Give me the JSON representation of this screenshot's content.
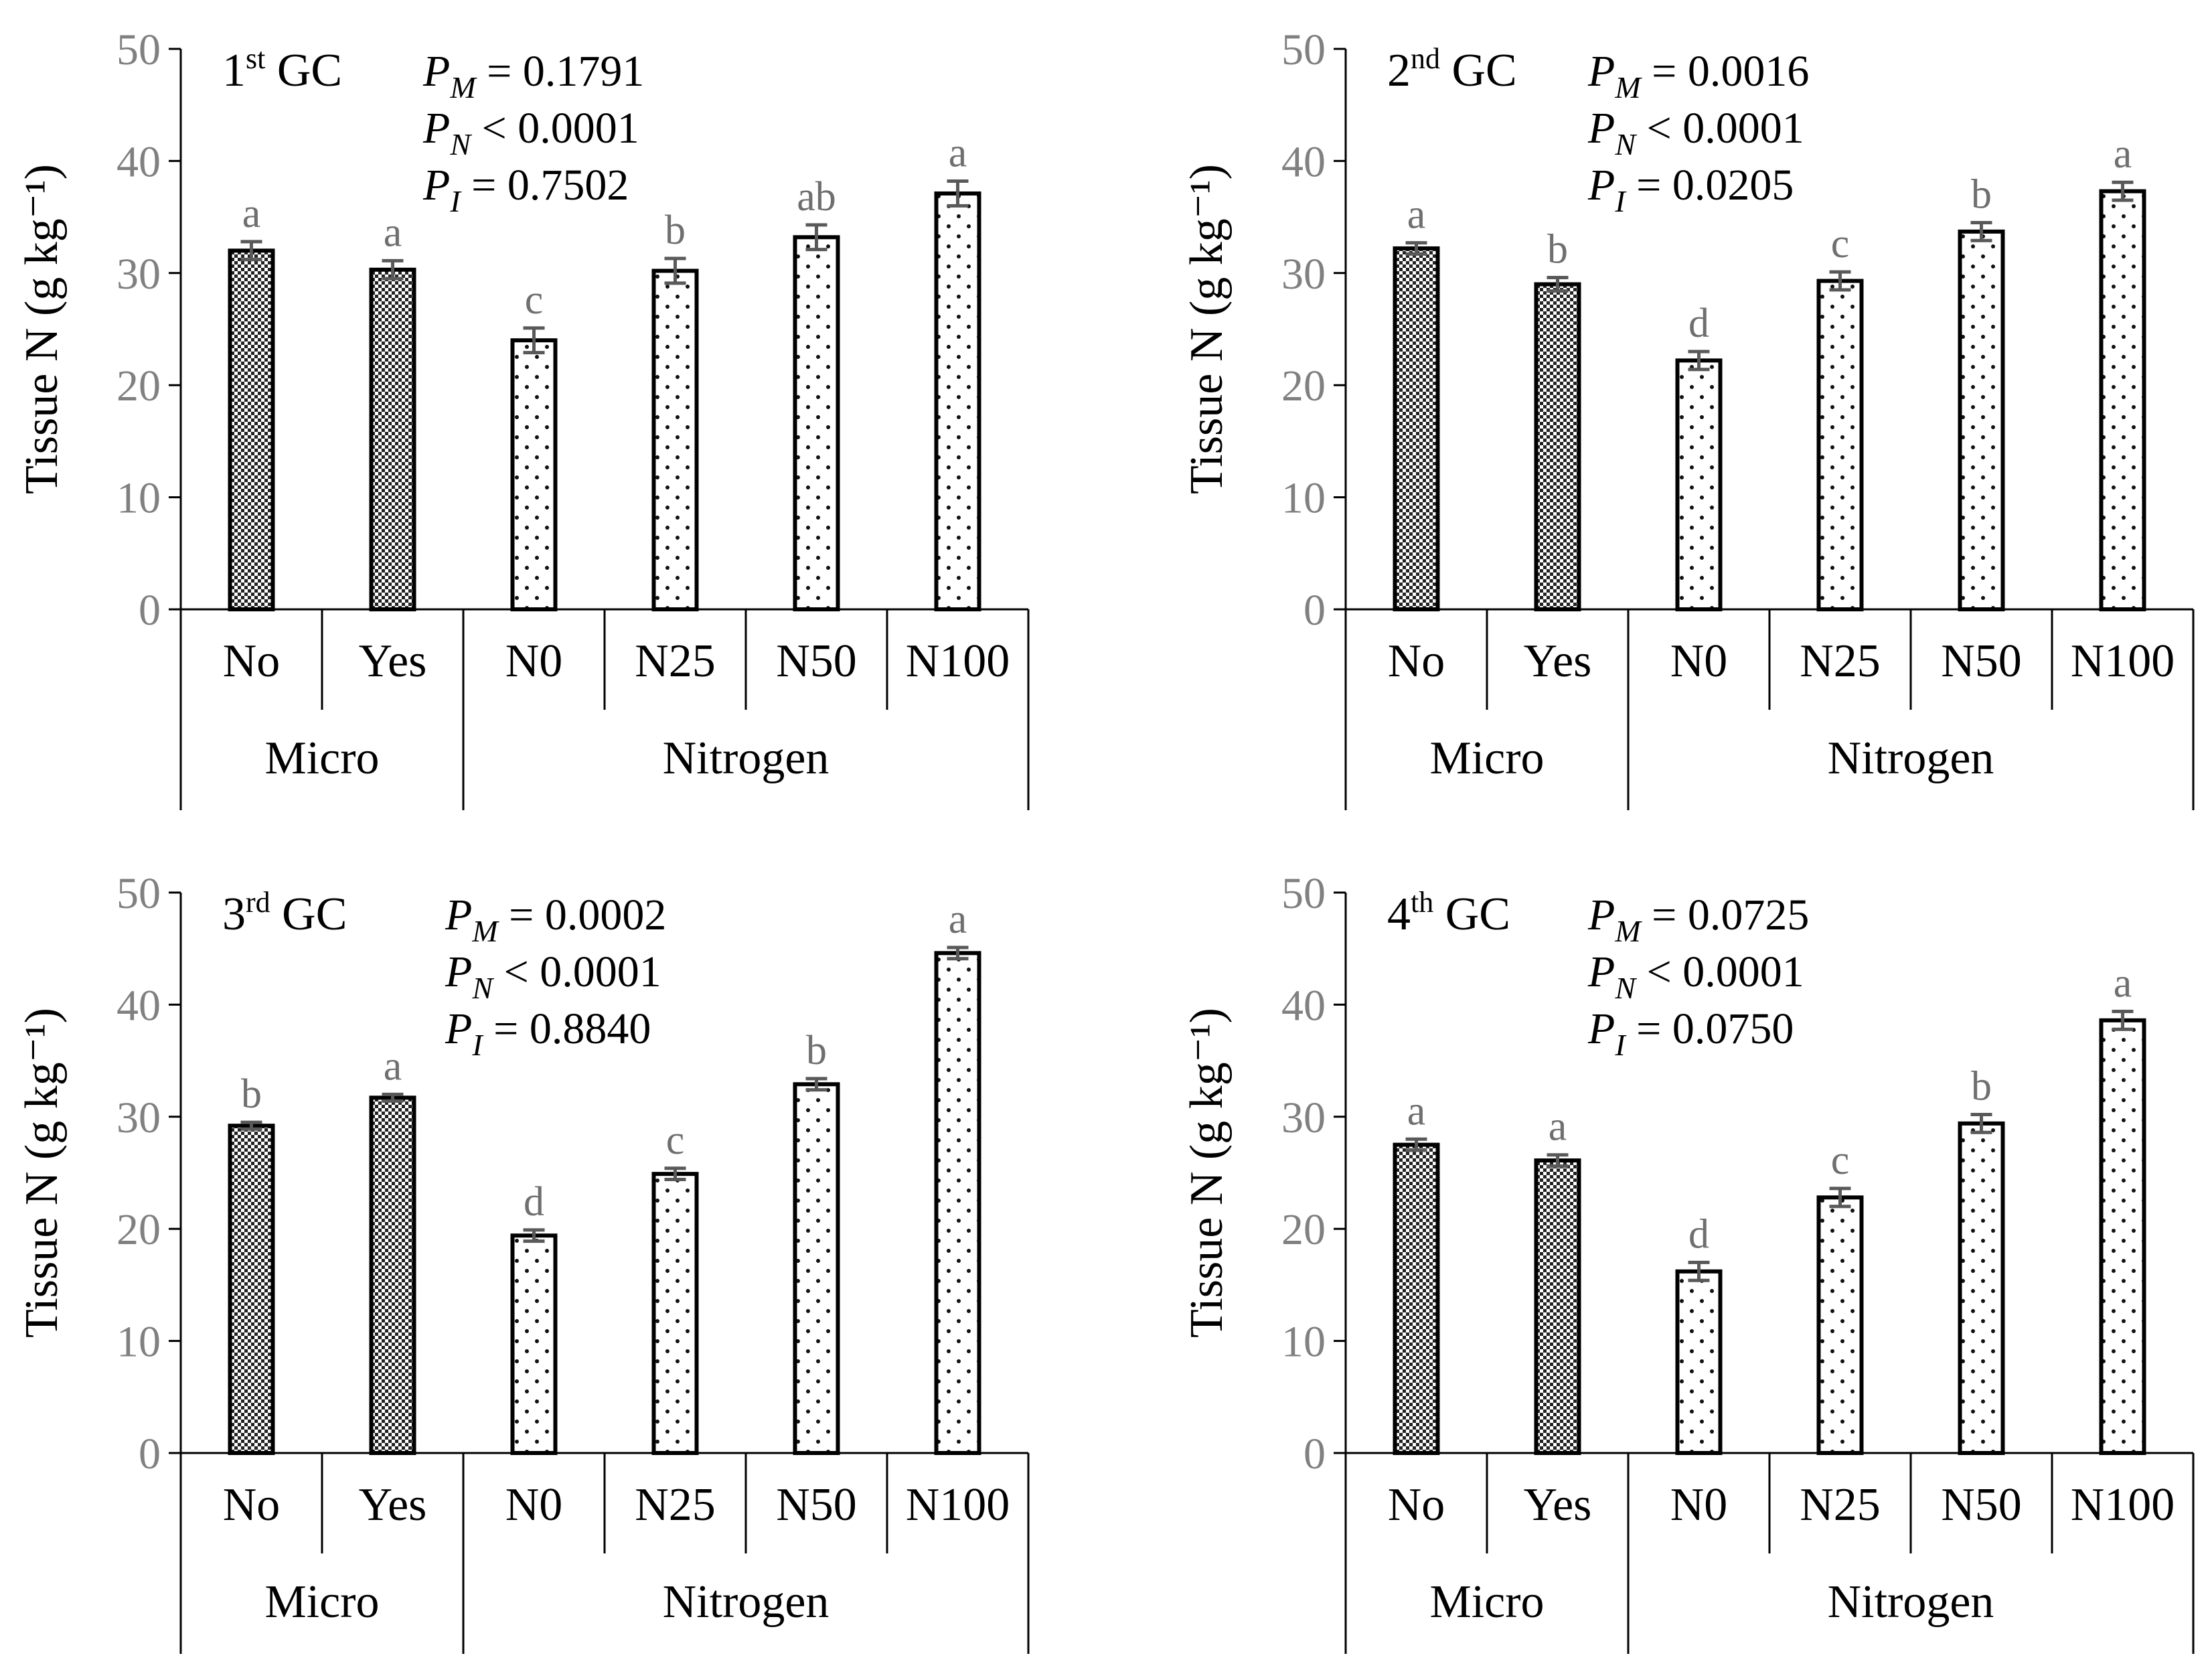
{
  "colors": {
    "axis": "#000000",
    "tick_label": "#808080",
    "letters": "#6f6f6f",
    "errorbar": "#595959",
    "micro_fill": "checker",
    "nitrogen_fill": "dots"
  },
  "chart_data": [
    {
      "type": "bar",
      "panel": "1st GC",
      "title": {
        "main": "1",
        "sup": "st",
        "rest": " GC"
      },
      "ylabel": "Tissue N (g kg⁻¹)",
      "ylim": [
        0,
        50
      ],
      "yticks": [
        "0",
        "10",
        "20",
        "30",
        "40",
        "50"
      ],
      "groups": [
        {
          "name": "Micro",
          "categories": [
            "No",
            "Yes"
          ]
        },
        {
          "name": "Nitrogen",
          "categories": [
            "N0",
            "N25",
            "N50",
            "N100"
          ]
        }
      ],
      "categories": [
        "No",
        "Yes",
        "N0",
        "N25",
        "N50",
        "N100"
      ],
      "values": [
        32.0,
        30.3,
        24.0,
        30.2,
        33.2,
        37.1
      ],
      "errors": [
        0.8,
        0.8,
        1.1,
        1.1,
        1.1,
        1.1
      ],
      "letters": [
        "a",
        "a",
        "c",
        "b",
        "ab",
        "a"
      ],
      "stats": [
        {
          "p": "P",
          "sub": "M",
          "op": " = 0.1791"
        },
        {
          "p": "P",
          "sub": "N",
          "op": " < 0.0001"
        },
        {
          "p": "P",
          "sub": "I",
          "op": " = 0.7502"
        }
      ]
    },
    {
      "type": "bar",
      "panel": "2nd GC",
      "title": {
        "main": "2",
        "sup": "nd",
        "rest": " GC"
      },
      "ylabel": "Tissue N (g kg⁻¹)",
      "ylim": [
        0,
        50
      ],
      "yticks": [
        "0",
        "10",
        "20",
        "30",
        "40",
        "50"
      ],
      "groups": [
        {
          "name": "Micro",
          "categories": [
            "No",
            "Yes"
          ]
        },
        {
          "name": "Nitrogen",
          "categories": [
            "N0",
            "N25",
            "N50",
            "N100"
          ]
        }
      ],
      "categories": [
        "No",
        "Yes",
        "N0",
        "N25",
        "N50",
        "N100"
      ],
      "values": [
        32.2,
        29.0,
        22.2,
        29.3,
        33.7,
        37.3
      ],
      "errors": [
        0.5,
        0.6,
        0.8,
        0.8,
        0.8,
        0.8
      ],
      "letters": [
        "a",
        "b",
        "d",
        "c",
        "b",
        "a"
      ],
      "stats": [
        {
          "p": "P",
          "sub": "M",
          "op": " = 0.0016"
        },
        {
          "p": "P",
          "sub": "N",
          "op": " < 0.0001"
        },
        {
          "p": "P",
          "sub": "I",
          "op": " = 0.0205"
        }
      ]
    },
    {
      "type": "bar",
      "panel": "3rd GC",
      "title": {
        "main": "3",
        "sup": "rd",
        "rest": " GC"
      },
      "ylabel": "Tissue N (g kg⁻¹)",
      "ylim": [
        0,
        50
      ],
      "yticks": [
        "0",
        "10",
        "20",
        "30",
        "40",
        "50"
      ],
      "groups": [
        {
          "name": "Micro",
          "categories": [
            "No",
            "Yes"
          ]
        },
        {
          "name": "Nitrogen",
          "categories": [
            "N0",
            "N25",
            "N50",
            "N100"
          ]
        }
      ],
      "categories": [
        "No",
        "Yes",
        "N0",
        "N25",
        "N50",
        "N100"
      ],
      "values": [
        29.2,
        31.7,
        19.4,
        24.9,
        32.9,
        44.6
      ],
      "errors": [
        0.3,
        0.3,
        0.5,
        0.5,
        0.5,
        0.5
      ],
      "letters": [
        "b",
        "a",
        "d",
        "c",
        "b",
        "a"
      ],
      "stats": [
        {
          "p": "P",
          "sub": "M",
          "op": " = 0.0002"
        },
        {
          "p": "P",
          "sub": "N",
          "op": " < 0.0001"
        },
        {
          "p": "P",
          "sub": "I",
          "op": " = 0.8840"
        }
      ]
    },
    {
      "type": "bar",
      "panel": "4th GC",
      "title": {
        "main": "4",
        "sup": "th",
        "rest": " GC"
      },
      "ylabel": "Tissue N (g kg⁻¹)",
      "ylim": [
        0,
        50
      ],
      "yticks": [
        "0",
        "10",
        "20",
        "30",
        "40",
        "50"
      ],
      "groups": [
        {
          "name": "Micro",
          "categories": [
            "No",
            "Yes"
          ]
        },
        {
          "name": "Nitrogen",
          "categories": [
            "N0",
            "N25",
            "N50",
            "N100"
          ]
        }
      ],
      "categories": [
        "No",
        "Yes",
        "N0",
        "N25",
        "N50",
        "N100"
      ],
      "values": [
        27.5,
        26.1,
        16.2,
        22.8,
        29.4,
        38.6
      ],
      "errors": [
        0.5,
        0.5,
        0.8,
        0.8,
        0.8,
        0.8
      ],
      "letters": [
        "a",
        "a",
        "d",
        "c",
        "b",
        "a"
      ],
      "stats": [
        {
          "p": "P",
          "sub": "M",
          "op": " = 0.0725"
        },
        {
          "p": "P",
          "sub": "N",
          "op": " < 0.0001"
        },
        {
          "p": "P",
          "sub": "I",
          "op": " = 0.0750"
        }
      ]
    }
  ]
}
